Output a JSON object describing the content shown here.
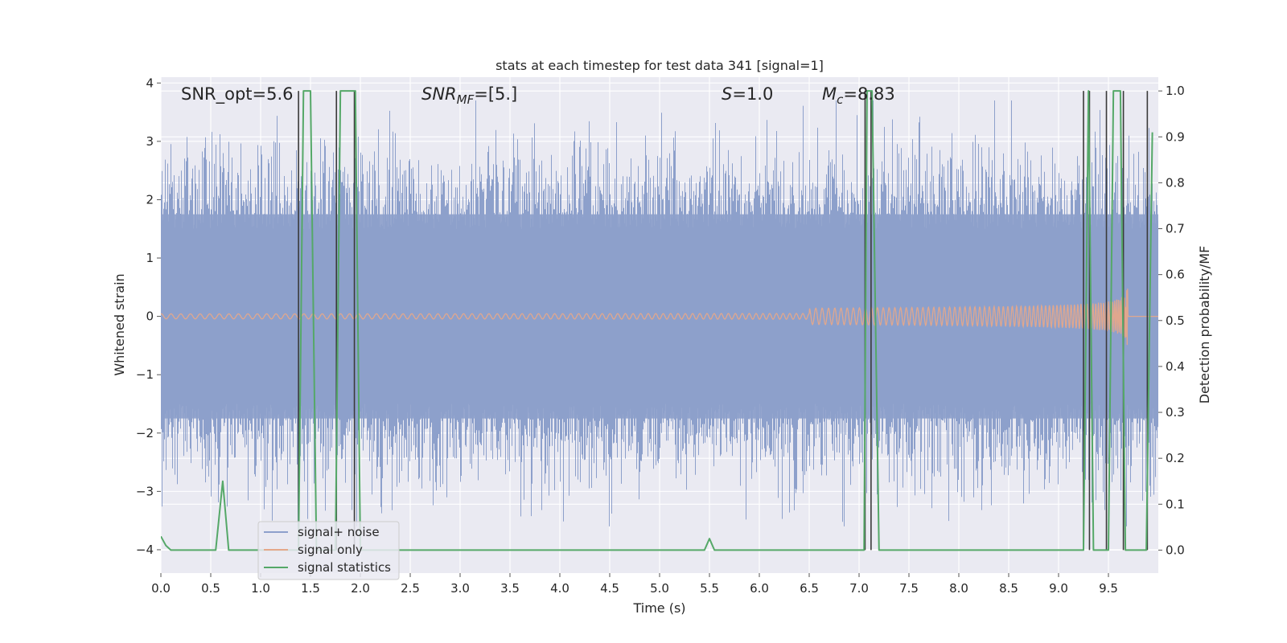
{
  "chart_data": {
    "type": "line",
    "title": "stats at each timestep for test data 341 [signal=1]",
    "xlabel": "Time (s)",
    "ylabel": "Whitened strain",
    "ylabel_right": "Detection probability/MF",
    "xlim": [
      0.0,
      10.0
    ],
    "ylim": [
      -4.4,
      4.1
    ],
    "ylim_right": [
      -0.05,
      1.03
    ],
    "x_ticks": [
      "0.0",
      "0.5",
      "1.0",
      "1.5",
      "2.0",
      "2.5",
      "3.0",
      "3.5",
      "4.0",
      "4.5",
      "5.0",
      "5.5",
      "6.0",
      "6.5",
      "7.0",
      "7.5",
      "8.0",
      "8.5",
      "9.0",
      "9.5"
    ],
    "y_ticks": [
      "−4",
      "−3",
      "−2",
      "−1",
      "0",
      "1",
      "2",
      "3",
      "4"
    ],
    "y_ticks_right": [
      "0.0",
      "0.1",
      "0.2",
      "0.3",
      "0.4",
      "0.5",
      "0.6",
      "0.7",
      "0.8",
      "0.9",
      "1.0"
    ],
    "grid": true,
    "legend_position": "lower-left",
    "series": [
      {
        "name": "signal+ noise",
        "color": "#8da0cb",
        "axis": "left",
        "note": "dense noise band",
        "band_core": [
          -1.75,
          1.75
        ],
        "band_extremes": [
          -3.6,
          3.7
        ]
      },
      {
        "name": "signal only",
        "color": "#e5a88a",
        "axis": "left",
        "chirp_start_time": 6.5,
        "chirp_peak_time": 9.68,
        "chirp_peak_amplitude": 0.85
      },
      {
        "name": "signal statistics",
        "color": "#55a868",
        "axis": "right",
        "x": [
          0.0,
          0.05,
          0.1,
          0.55,
          0.62,
          0.68,
          1.38,
          1.43,
          1.5,
          1.56,
          1.75,
          1.8,
          1.95,
          2.0,
          5.45,
          5.5,
          5.55,
          7.05,
          7.08,
          7.13,
          7.2,
          9.25,
          9.3,
          9.35,
          9.5,
          9.55,
          9.62,
          9.67,
          9.88,
          9.94
        ],
        "values": [
          0.03,
          0.01,
          0.0,
          0.0,
          0.15,
          0.0,
          0.0,
          1.0,
          1.0,
          0.0,
          0.0,
          1.0,
          1.0,
          0.0,
          0.0,
          0.025,
          0.0,
          0.0,
          1.0,
          1.0,
          0.0,
          0.0,
          1.0,
          0.0,
          0.0,
          1.0,
          1.0,
          0.0,
          0.0,
          0.91
        ]
      }
    ],
    "mf_markers": {
      "color": "#3a3a3a",
      "x": [
        1.38,
        1.76,
        1.94,
        7.06,
        7.12,
        9.25,
        9.31,
        9.48,
        9.65,
        9.89
      ],
      "values": [
        1.0,
        1.0,
        1.0,
        1.0,
        1.0,
        1.0,
        1.0,
        1.0,
        1.0,
        1.0
      ]
    },
    "annotations": {
      "snr_opt": "SNR_opt=5.6",
      "snr_mf_label": "SNR",
      "snr_mf_sub": "MF",
      "snr_mf_value": "=[5.]",
      "s_label": "S",
      "s_value": "=1.0",
      "mc_label": "M",
      "mc_sub": "c",
      "mc_value": "=8.83"
    },
    "colors": {
      "axes_bg": "#eaeaf2",
      "grid": "#ffffff",
      "noise": "#8da0cb",
      "signal": "#e5a88a",
      "stats": "#55a868",
      "markers": "#3a3a3a"
    }
  }
}
